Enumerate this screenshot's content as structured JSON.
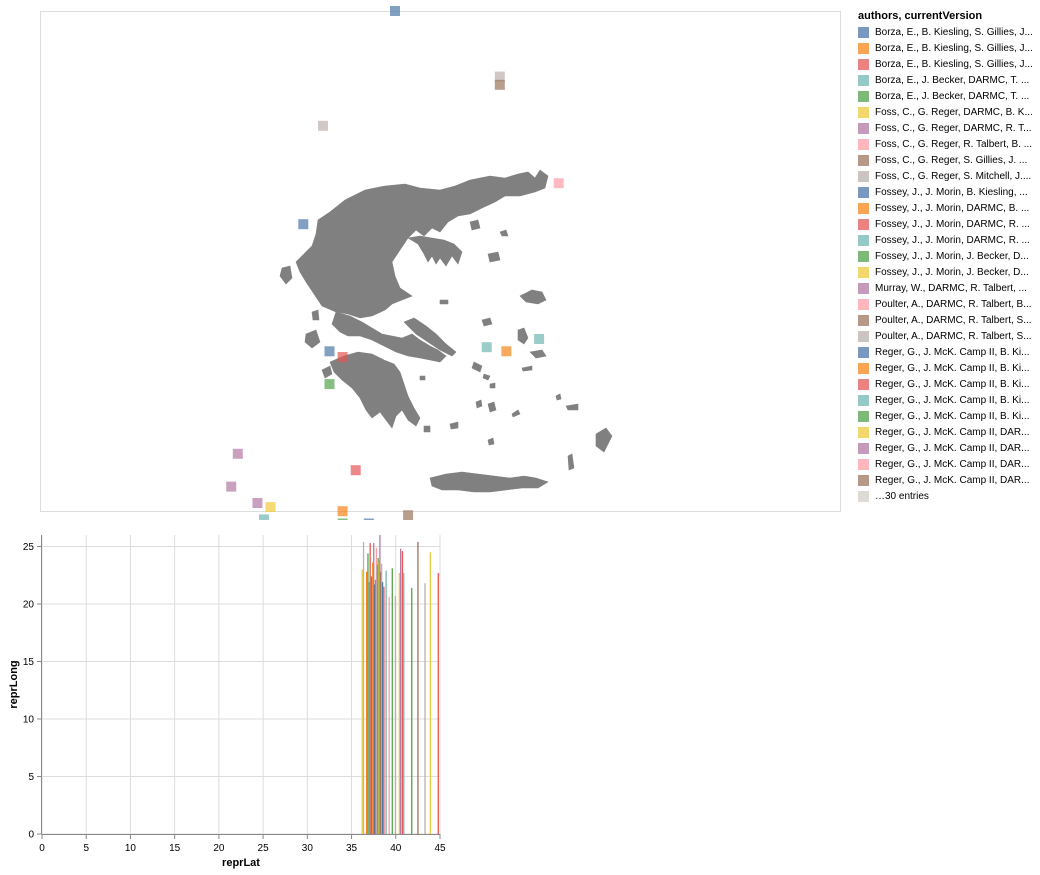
{
  "legend": {
    "title": "authors, currentVersion",
    "more_label": "…30 entries",
    "more_color": "#d6cec7",
    "entries": [
      {
        "label": "Borza, E., B. Kiesling, S. Gillies, J...",
        "color": "#4c78a8"
      },
      {
        "label": "Borza, E., B. Kiesling, S. Gillies, J...",
        "color": "#f58518"
      },
      {
        "label": "Borza, E., B. Kiesling, S. Gillies, J...",
        "color": "#e45756"
      },
      {
        "label": "Borza, E., J. Becker, DARMC, T. ...",
        "color": "#72b7b2"
      },
      {
        "label": "Borza, E., J. Becker, DARMC, T. ...",
        "color": "#54a24b"
      },
      {
        "label": "Foss, C., G. Reger, DARMC, B. K...",
        "color": "#eeca3b"
      },
      {
        "label": "Foss, C., G. Reger, DARMC, R. T...",
        "color": "#b279a2"
      },
      {
        "label": "Foss, C., G. Reger, R. Talbert, B. ...",
        "color": "#ff9da6"
      },
      {
        "label": "Foss, C., G. Reger, S. Gillies, J. ...",
        "color": "#9d755d"
      },
      {
        "label": "Foss, C., G. Reger, S. Mitchell, J....",
        "color": "#bab0ac"
      },
      {
        "label": "Fossey, J., J. Morin, B. Kiesling, ...",
        "color": "#4c78a8"
      },
      {
        "label": "Fossey, J., J. Morin, DARMC, B. ...",
        "color": "#f58518"
      },
      {
        "label": "Fossey, J., J. Morin, DARMC, R. ...",
        "color": "#e45756"
      },
      {
        "label": "Fossey, J., J. Morin, DARMC, R. ...",
        "color": "#72b7b2"
      },
      {
        "label": "Fossey, J., J. Morin, J. Becker, D...",
        "color": "#54a24b"
      },
      {
        "label": "Fossey, J., J. Morin, J. Becker, D...",
        "color": "#eeca3b"
      },
      {
        "label": "Murray, W., DARMC, R. Talbert, ...",
        "color": "#b279a2"
      },
      {
        "label": "Poulter, A., DARMC, R. Talbert, B...",
        "color": "#ff9da6"
      },
      {
        "label": "Poulter, A., DARMC, R. Talbert, S...",
        "color": "#9d755d"
      },
      {
        "label": "Poulter, A., DARMC, R. Talbert, S...",
        "color": "#bab0ac"
      },
      {
        "label": "Reger, G., J. McK. Camp II, B. Ki...",
        "color": "#4c78a8"
      },
      {
        "label": "Reger, G., J. McK. Camp II, B. Ki...",
        "color": "#f58518"
      },
      {
        "label": "Reger, G., J. McK. Camp II, B. Ki...",
        "color": "#e45756"
      },
      {
        "label": "Reger, G., J. McK. Camp II, B. Ki...",
        "color": "#72b7b2"
      },
      {
        "label": "Reger, G., J. McK. Camp II, B. Ki...",
        "color": "#54a24b"
      },
      {
        "label": "Reger, G., J. McK. Camp II, DAR...",
        "color": "#eeca3b"
      },
      {
        "label": "Reger, G., J. McK. Camp II, DAR...",
        "color": "#b279a2"
      },
      {
        "label": "Reger, G., J. McK. Camp II, DAR...",
        "color": "#ff9da6"
      },
      {
        "label": "Reger, G., J. McK. Camp II, DAR...",
        "color": "#9d755d"
      }
    ]
  },
  "chart_data": [
    {
      "type": "scatter",
      "description_marks": "square points over a grey map of Greece",
      "x_field": "reprLong",
      "y_field": "reprLat",
      "land_color": "#808080",
      "points": [
        {
          "lon": 22.0,
          "lat": 45.0,
          "color": "#4c78a8"
        },
        {
          "lon": 23.6,
          "lat": 44.2,
          "color": "#bab0ac"
        },
        {
          "lon": 23.6,
          "lat": 44.1,
          "color": "#9d755d"
        },
        {
          "lon": 20.9,
          "lat": 43.6,
          "color": "#bab0ac"
        },
        {
          "lon": 24.5,
          "lat": 42.9,
          "color": "#ff9da6"
        },
        {
          "lon": 20.6,
          "lat": 42.4,
          "color": "#4c78a8"
        },
        {
          "lon": 24.2,
          "lat": 41.0,
          "color": "#72b7b2"
        },
        {
          "lon": 23.4,
          "lat": 40.9,
          "color": "#72b7b2"
        },
        {
          "lon": 23.7,
          "lat": 40.85,
          "color": "#f58518"
        },
        {
          "lon": 21.0,
          "lat": 40.85,
          "color": "#4c78a8"
        },
        {
          "lon": 21.2,
          "lat": 40.78,
          "color": "#e45756"
        },
        {
          "lon": 21.0,
          "lat": 40.45,
          "color": "#54a24b"
        },
        {
          "lon": 19.6,
          "lat": 39.6,
          "color": "#b279a2"
        },
        {
          "lon": 21.4,
          "lat": 39.4,
          "color": "#e45756"
        },
        {
          "lon": 19.5,
          "lat": 39.2,
          "color": "#b279a2"
        },
        {
          "lon": 19.9,
          "lat": 39.0,
          "color": "#b279a2"
        },
        {
          "lon": 20.1,
          "lat": 38.95,
          "color": "#eeca3b"
        },
        {
          "lon": 20.0,
          "lat": 38.8,
          "color": "#72b7b2"
        },
        {
          "lon": 21.2,
          "lat": 38.9,
          "color": "#f58518"
        },
        {
          "lon": 21.2,
          "lat": 38.75,
          "color": "#54a24b"
        },
        {
          "lon": 21.6,
          "lat": 38.75,
          "color": "#4c78a8"
        },
        {
          "lon": 21.4,
          "lat": 38.7,
          "color": "#e45756"
        },
        {
          "lon": 22.2,
          "lat": 38.85,
          "color": "#9d755d"
        },
        {
          "lon": 22.2,
          "lat": 38.6,
          "color": "#b279a2"
        },
        {
          "lon": 22.0,
          "lat": 38.55,
          "color": "#ff9da6"
        },
        {
          "lon": 21.95,
          "lat": 38.5,
          "color": "#eeca3b"
        },
        {
          "lon": 22.4,
          "lat": 38.4,
          "color": "#eeca3b"
        },
        {
          "lon": 25.3,
          "lat": 38.6,
          "color": "#bab0ac"
        },
        {
          "lon": 20.8,
          "lat": 38.42,
          "color": "#bab0ac"
        },
        {
          "lon": 21.1,
          "lat": 38.4,
          "color": "#f58518"
        },
        {
          "lon": 21.3,
          "lat": 38.3,
          "color": "#54a24b"
        },
        {
          "lon": 21.5,
          "lat": 38.25,
          "color": "#9d755d"
        },
        {
          "lon": 20.9,
          "lat": 38.2,
          "color": "#e45756"
        },
        {
          "lon": 20.8,
          "lat": 38.15,
          "color": "#e45756"
        },
        {
          "lon": 21.3,
          "lat": 38.1,
          "color": "#4c78a8"
        },
        {
          "lon": 20.2,
          "lat": 38.2,
          "color": "#9d755d"
        },
        {
          "lon": 20.4,
          "lat": 38.1,
          "color": "#4c78a8"
        },
        {
          "lon": 20.4,
          "lat": 37.95,
          "color": "#f58518"
        },
        {
          "lon": 20.8,
          "lat": 37.9,
          "color": "#72b7b2"
        },
        {
          "lon": 24.4,
          "lat": 38.1,
          "color": "#e45756"
        },
        {
          "lon": 24.5,
          "lat": 37.9,
          "color": "#b279a2"
        },
        {
          "lon": 23.8,
          "lat": 37.65,
          "color": "#9d755d"
        },
        {
          "lon": 24.6,
          "lat": 37.45,
          "color": "#eeca3b"
        },
        {
          "lon": 21.2,
          "lat": 37.4,
          "color": "#72b7b2"
        }
      ]
    },
    {
      "type": "bar",
      "xlabel": "reprLat",
      "ylabel": "reprLong",
      "xlim": [
        0,
        45
      ],
      "ylim": [
        0,
        26
      ],
      "xticks": [
        0,
        5,
        10,
        15,
        20,
        25,
        30,
        35,
        40,
        45
      ],
      "yticks": [
        0,
        5,
        10,
        15,
        20,
        25
      ],
      "grid": true,
      "bars": [
        {
          "x": 36.2,
          "y": 23.0,
          "color": "#eeca3b"
        },
        {
          "x": 36.35,
          "y": 25.4,
          "color": "#bab0ac"
        },
        {
          "x": 36.7,
          "y": 22.8,
          "color": "#f58518"
        },
        {
          "x": 36.85,
          "y": 24.4,
          "color": "#54a24b"
        },
        {
          "x": 37.0,
          "y": 21.9,
          "color": "#72b7b2"
        },
        {
          "x": 37.1,
          "y": 25.3,
          "color": "#e45756"
        },
        {
          "x": 37.25,
          "y": 22.4,
          "color": "#9d755d"
        },
        {
          "x": 37.4,
          "y": 23.6,
          "color": "#f58518"
        },
        {
          "x": 37.5,
          "y": 25.3,
          "color": "#b279a2"
        },
        {
          "x": 37.6,
          "y": 21.7,
          "color": "#4c78a8"
        },
        {
          "x": 37.7,
          "y": 22.1,
          "color": "#e45756"
        },
        {
          "x": 37.8,
          "y": 24.9,
          "color": "#ff9da6"
        },
        {
          "x": 37.9,
          "y": 23.4,
          "color": "#72b7b2"
        },
        {
          "x": 38.0,
          "y": 24.0,
          "color": "#54a24b"
        },
        {
          "x": 38.1,
          "y": 23.7,
          "color": "#eeca3b"
        },
        {
          "x": 38.2,
          "y": 26.0,
          "color": "#b279a2"
        },
        {
          "x": 38.3,
          "y": 22.8,
          "color": "#9d755d"
        },
        {
          "x": 38.4,
          "y": 23.5,
          "color": "#bab0ac"
        },
        {
          "x": 38.5,
          "y": 21.9,
          "color": "#4c78a8"
        },
        {
          "x": 38.65,
          "y": 21.5,
          "color": "#e45756"
        },
        {
          "x": 38.9,
          "y": 22.9,
          "color": "#72b7b2"
        },
        {
          "x": 39.25,
          "y": 20.6,
          "color": "#ff9da6"
        },
        {
          "x": 39.6,
          "y": 23.1,
          "color": "#54a24b"
        },
        {
          "x": 39.95,
          "y": 20.7,
          "color": "#bab0ac"
        },
        {
          "x": 40.4,
          "y": 22.7,
          "color": "#eeca3b"
        },
        {
          "x": 40.55,
          "y": 24.8,
          "color": "#b279a2"
        },
        {
          "x": 40.75,
          "y": 24.6,
          "color": "#e45756"
        },
        {
          "x": 40.9,
          "y": 22.7,
          "color": "#72b7b2"
        },
        {
          "x": 41.8,
          "y": 21.4,
          "color": "#54a24b"
        },
        {
          "x": 42.5,
          "y": 25.4,
          "color": "#9d755d"
        },
        {
          "x": 43.3,
          "y": 21.8,
          "color": "#bab0ac"
        },
        {
          "x": 43.9,
          "y": 24.5,
          "color": "#eeca3b"
        },
        {
          "x": 44.8,
          "y": 22.7,
          "color": "#e45756"
        }
      ]
    }
  ]
}
